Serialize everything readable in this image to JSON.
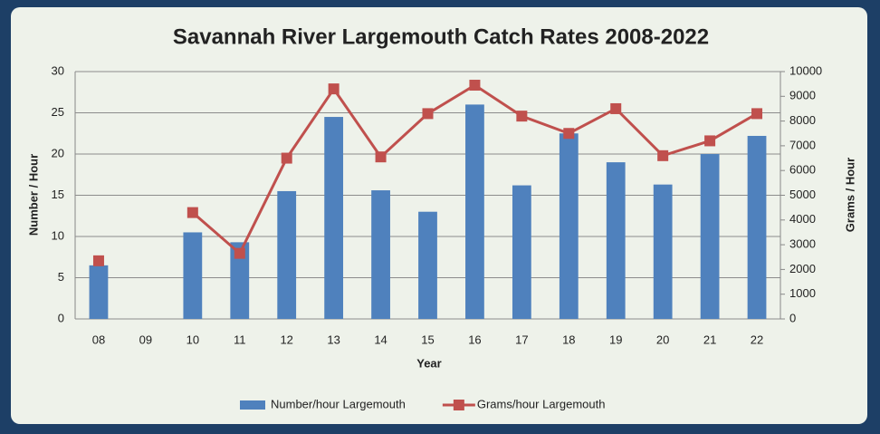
{
  "chart_data": {
    "type": "bar",
    "title": "Savannah River Largemouth Catch Rates 2008-2022",
    "xlabel": "Year",
    "ylabel": "Number / Hour",
    "y2label": "Grams / Hour",
    "categories": [
      "08",
      "09",
      "10",
      "11",
      "12",
      "13",
      "14",
      "15",
      "16",
      "17",
      "18",
      "19",
      "20",
      "21",
      "22"
    ],
    "series": [
      {
        "name": "Number/hour Largemouth",
        "type": "bar",
        "color": "#4f81bd",
        "values": [
          6.5,
          null,
          10.5,
          9.3,
          15.5,
          24.5,
          15.6,
          13.0,
          26.0,
          16.2,
          22.5,
          19.0,
          16.3,
          20.0,
          22.2
        ]
      },
      {
        "name": "Grams/hour Largemouth",
        "type": "line",
        "axis": "y2",
        "color": "#c0504d",
        "values": [
          2350,
          null,
          4300,
          2650,
          6500,
          9300,
          6550,
          8300,
          9450,
          8200,
          7500,
          8500,
          6600,
          7200,
          8300
        ]
      }
    ],
    "ylim": [
      0,
      30
    ],
    "yticks": [
      0,
      5,
      10,
      15,
      20,
      25,
      30
    ],
    "y2lim": [
      0,
      10000
    ],
    "y2ticks": [
      0,
      1000,
      2000,
      3000,
      4000,
      5000,
      6000,
      7000,
      8000,
      9000,
      10000
    ],
    "grid": true,
    "legend": "bottom"
  }
}
